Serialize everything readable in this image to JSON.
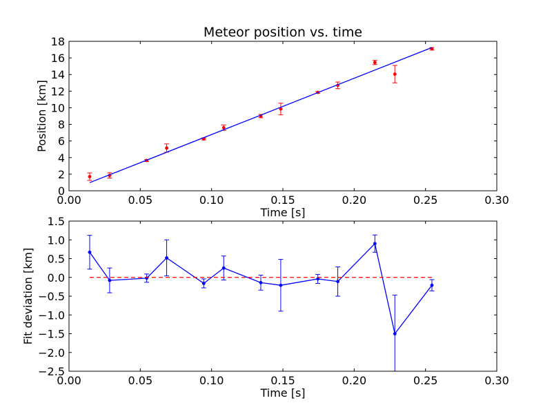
{
  "figure": {
    "background": "#ffffff"
  },
  "chart_data": [
    {
      "type": "scatter",
      "title": "Meteor position vs. time",
      "xlabel": "Time [s]",
      "ylabel": "Position [km]",
      "xlim": [
        0.0,
        0.3
      ],
      "ylim": [
        0,
        18
      ],
      "xticks": [
        "0.00",
        "0.05",
        "0.10",
        "0.15",
        "0.20",
        "0.25",
        "0.30"
      ],
      "xtick_values": [
        0.0,
        0.05,
        0.1,
        0.15,
        0.2,
        0.25,
        0.3
      ],
      "yticks": [
        "0",
        "2",
        "4",
        "6",
        "8",
        "10",
        "12",
        "14",
        "16",
        "18"
      ],
      "ytick_values": [
        0,
        2,
        4,
        6,
        8,
        10,
        12,
        14,
        16,
        18
      ],
      "grid": false,
      "series": [
        {
          "kind": "errorbar-points",
          "color": "#ff0000",
          "x": [
            0.0145,
            0.0285,
            0.0545,
            0.0685,
            0.0945,
            0.1085,
            0.1345,
            0.1485,
            0.1745,
            0.1885,
            0.2145,
            0.2285,
            0.2545
          ],
          "y": [
            1.7,
            1.85,
            3.65,
            5.15,
            6.25,
            7.6,
            9.0,
            9.85,
            11.85,
            12.7,
            15.45,
            14.05,
            17.1
          ],
          "yerr": [
            0.45,
            0.32,
            0.12,
            0.5,
            0.12,
            0.32,
            0.2,
            0.7,
            0.1,
            0.4,
            0.25,
            1.05,
            0.15
          ]
        },
        {
          "kind": "line",
          "color": "#0000ff",
          "x": [
            0.0145,
            0.2545
          ],
          "y": [
            0.98,
            17.25
          ]
        }
      ]
    },
    {
      "type": "line",
      "title": "",
      "xlabel": "Time [s]",
      "ylabel": "Fit deviation [km]",
      "xlim": [
        0.0,
        0.3
      ],
      "ylim": [
        -2.5,
        1.5
      ],
      "xticks": [
        "0.00",
        "0.05",
        "0.10",
        "0.15",
        "0.20",
        "0.25",
        "0.30"
      ],
      "xtick_values": [
        0.0,
        0.05,
        0.1,
        0.15,
        0.2,
        0.25,
        0.3
      ],
      "yticks": [
        "−2.5",
        "−2.0",
        "−1.5",
        "−1.0",
        "−0.5",
        "0.0",
        "0.5",
        "1.0",
        "1.5"
      ],
      "ytick_values": [
        -2.5,
        -2.0,
        -1.5,
        -1.0,
        -0.5,
        0.0,
        0.5,
        1.0,
        1.5
      ],
      "grid": false,
      "series": [
        {
          "kind": "errorbar-line",
          "color": "#0000ff",
          "x": [
            0.0145,
            0.0285,
            0.0545,
            0.0685,
            0.0945,
            0.1085,
            0.1345,
            0.1485,
            0.1745,
            0.1885,
            0.2145,
            0.2285,
            0.2545
          ],
          "y": [
            0.67,
            -0.08,
            -0.02,
            0.52,
            -0.16,
            0.25,
            -0.14,
            -0.21,
            -0.04,
            -0.11,
            0.9,
            -1.5,
            -0.21
          ],
          "yerr": [
            0.45,
            0.33,
            0.11,
            0.48,
            0.12,
            0.32,
            0.2,
            0.69,
            0.12,
            0.39,
            0.23,
            1.03,
            0.15
          ]
        },
        {
          "kind": "dashed-line",
          "color": "#ff0000",
          "x": [
            0.0145,
            0.2545
          ],
          "y": [
            0.0,
            0.0
          ]
        }
      ]
    }
  ]
}
